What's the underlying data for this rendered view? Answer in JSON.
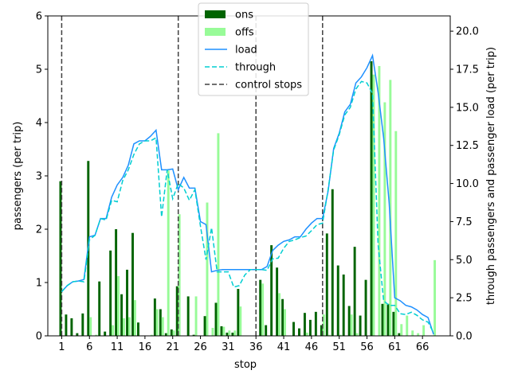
{
  "chart_data": {
    "type": "bar",
    "xlabel": "stop",
    "ylabel_left": "passengers (per trip)",
    "ylabel_right": "through passengers and passenger load (per trip)",
    "xlim": [
      -1.5,
      71
    ],
    "ylim_left": [
      0,
      6
    ],
    "ylim_right": [
      0,
      21
    ],
    "x_ticks": [
      1,
      6,
      11,
      16,
      21,
      26,
      31,
      36,
      41,
      46,
      51,
      56,
      61,
      66
    ],
    "y_ticks_left": [
      0,
      1,
      2,
      3,
      4,
      5,
      6
    ],
    "y_ticks_right": [
      0.0,
      2.5,
      5.0,
      7.5,
      10.0,
      12.5,
      15.0,
      17.5,
      20.0
    ],
    "legend_location": "upper-center",
    "control_stops": [
      1,
      22,
      36,
      48
    ],
    "stops": [
      1,
      2,
      3,
      4,
      5,
      6,
      7,
      8,
      9,
      10,
      11,
      12,
      13,
      14,
      15,
      16,
      17,
      18,
      19,
      20,
      21,
      22,
      23,
      24,
      25,
      26,
      27,
      28,
      29,
      30,
      31,
      32,
      33,
      34,
      35,
      36,
      37,
      38,
      39,
      40,
      41,
      42,
      43,
      44,
      45,
      46,
      47,
      48,
      49,
      50,
      51,
      52,
      53,
      54,
      55,
      56,
      57,
      58,
      59,
      60,
      61,
      62,
      63,
      64,
      65,
      66,
      67,
      68
    ],
    "series": [
      {
        "name": "ons",
        "kind": "bar",
        "color": "#006400",
        "values": [
          2.9,
          0.4,
          0.33,
          0.05,
          0.42,
          3.28,
          0.0,
          1.02,
          0.08,
          1.6,
          2.0,
          0.78,
          1.24,
          1.93,
          0.25,
          0.0,
          0.0,
          0.7,
          0.5,
          0.05,
          0.12,
          0.93,
          0.0,
          0.74,
          0.02,
          0.0,
          0.37,
          0.0,
          0.62,
          0.18,
          0.06,
          0.06,
          0.88,
          0.0,
          0.0,
          0.0,
          1.05,
          0.2,
          1.7,
          1.28,
          0.69,
          0.0,
          0.26,
          0.14,
          0.43,
          0.3,
          0.45,
          0.2,
          1.92,
          2.75,
          1.32,
          1.15,
          0.56,
          1.67,
          0.38,
          1.05,
          5.15,
          0.0,
          0.6,
          0.6,
          0.45,
          0.05,
          0.0,
          0.0,
          0.0,
          0.0,
          0.0,
          0.0
        ]
      },
      {
        "name": "offs",
        "kind": "bar",
        "color": "#98fb98",
        "values": [
          0.0,
          0.0,
          0.0,
          0.0,
          0.0,
          0.35,
          0.02,
          0.0,
          0.0,
          0.2,
          1.12,
          0.33,
          0.35,
          0.67,
          0.0,
          0.0,
          0.02,
          0.5,
          0.35,
          3.1,
          0.1,
          2.28,
          0.0,
          0.0,
          0.74,
          0.0,
          2.5,
          0.15,
          3.8,
          0.17,
          0.1,
          0.1,
          0.55,
          0.0,
          0.0,
          0.0,
          0.98,
          0.0,
          0.0,
          0.8,
          0.5,
          0.0,
          0.0,
          0.0,
          0.06,
          0.0,
          0.0,
          0.4,
          0.02,
          0.0,
          0.02,
          0.0,
          0.4,
          0.05,
          0.0,
          0.0,
          4.9,
          5.06,
          4.38,
          4.8,
          3.84,
          0.22,
          0.38,
          0.1,
          0.05,
          0.2,
          0.0,
          1.42
        ]
      },
      {
        "name": "load",
        "kind": "line",
        "axis": "right",
        "color": "#1e90ff",
        "values": [
          2.9,
          3.3,
          3.55,
          3.6,
          3.7,
          6.5,
          6.6,
          7.7,
          7.7,
          9.1,
          9.9,
          10.4,
          11.2,
          12.6,
          12.8,
          12.8,
          13.1,
          13.5,
          10.9,
          10.9,
          10.95,
          9.6,
          10.4,
          9.7,
          9.7,
          7.5,
          7.3,
          4.2,
          4.3,
          4.35,
          4.35,
          4.35,
          4.35,
          4.35,
          4.35,
          4.35,
          4.35,
          4.55,
          5.6,
          5.95,
          6.2,
          6.3,
          6.5,
          6.5,
          7.0,
          7.4,
          7.7,
          7.7,
          9.5,
          12.3,
          13.3,
          14.7,
          15.2,
          16.6,
          17.0,
          17.6,
          18.4,
          16.0,
          13.0,
          8.7,
          2.5,
          2.3,
          2.0,
          1.9,
          1.7,
          1.4,
          1.2,
          0.1
        ]
      },
      {
        "name": "through",
        "kind": "line",
        "axis": "right",
        "style": "dashed",
        "color": "#00ced1",
        "values": [
          2.9,
          3.3,
          3.55,
          3.6,
          3.55,
          6.3,
          6.6,
          7.7,
          7.6,
          8.9,
          8.8,
          10.2,
          10.9,
          11.9,
          12.6,
          12.8,
          12.8,
          13.0,
          7.8,
          10.9,
          9.0,
          10.0,
          9.7,
          8.9,
          9.6,
          7.2,
          5.0,
          7.1,
          4.2,
          4.2,
          4.2,
          3.2,
          3.3,
          4.0,
          4.35,
          4.35,
          4.35,
          4.3,
          5.05,
          5.1,
          5.75,
          6.2,
          6.3,
          6.45,
          6.55,
          6.9,
          7.3,
          7.4,
          9.6,
          12.2,
          13.2,
          14.5,
          15.0,
          16.2,
          16.7,
          16.6,
          15.9,
          6.0,
          2.3,
          2.0,
          2.0,
          1.45,
          1.4,
          1.55,
          1.35,
          1.05,
          0.9,
          0.2
        ]
      },
      {
        "name": "control stops",
        "kind": "vline",
        "style": "dashed",
        "color": "#404040"
      }
    ]
  }
}
